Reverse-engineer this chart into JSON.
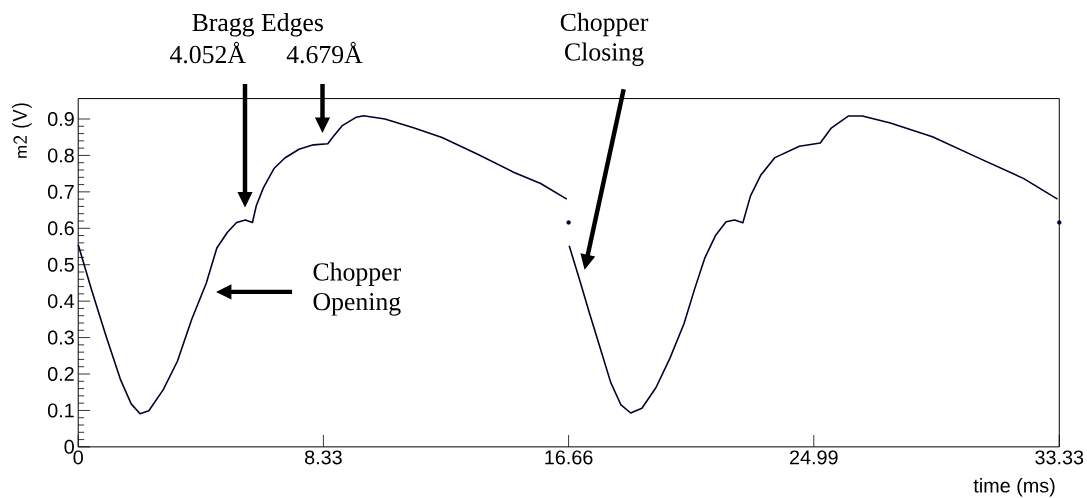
{
  "chart_data": {
    "type": "line",
    "xlabel": "time (ms)",
    "ylabel": "m2 (V)",
    "xlim": [
      0,
      33.33
    ],
    "xticks": [
      0,
      8.33,
      16.66,
      24.99,
      33.33
    ],
    "ylim": [
      0,
      0.956
    ],
    "yticks": [
      0,
      0.1,
      0.2,
      0.3,
      0.4,
      0.5,
      0.6,
      0.7,
      0.8,
      0.9
    ],
    "line_style": "solid",
    "annotations": [
      "Bragg Edges",
      "4.052Å",
      "4.679Å",
      "Chopper Opening",
      "Chopper Closing"
    ],
    "series": [
      {
        "color": "#00002a",
        "x": [
          0,
          0.46,
          0.95,
          1.43,
          1.8,
          2.1,
          2.4,
          2.89,
          3.37,
          3.86,
          4.35,
          4.71,
          5.07,
          5.38,
          5.68,
          5.92,
          6.05,
          6.29,
          6.65,
          7.02,
          7.5,
          7.99,
          8.48,
          8.66,
          8.96,
          9.45,
          9.69,
          10.42,
          11.39,
          12.36,
          13.57,
          14.79,
          15.71,
          16.6,
          16.64,
          16.68,
          17.02,
          17.37,
          17.73,
          18.09,
          18.44,
          18.77,
          19.15,
          19.63,
          20.1,
          20.58,
          20.94,
          21.29,
          21.65,
          22.01,
          22.3,
          22.58,
          22.84,
          23.19,
          23.67,
          24.5,
          25.21,
          25.57,
          26.16,
          26.64,
          27.59,
          29.02,
          30.56,
          32.11,
          33.27
        ],
        "values": [
          0.555,
          0.429,
          0.303,
          0.186,
          0.118,
          0.091,
          0.099,
          0.157,
          0.235,
          0.351,
          0.449,
          0.546,
          0.589,
          0.616,
          0.623,
          0.616,
          0.662,
          0.711,
          0.764,
          0.793,
          0.817,
          0.829,
          0.832,
          0.851,
          0.881,
          0.905,
          0.909,
          0.9,
          0.876,
          0.849,
          0.803,
          0.754,
          0.723,
          0.68,
          null,
          0.552,
          0.462,
          0.367,
          0.272,
          0.177,
          0.115,
          0.093,
          0.106,
          0.163,
          0.243,
          0.338,
          0.433,
          0.519,
          0.58,
          0.618,
          0.623,
          0.615,
          0.689,
          0.746,
          0.794,
          0.825,
          0.834,
          0.874,
          0.908,
          0.908,
          0.889,
          0.851,
          0.794,
          0.737,
          0.68
        ]
      },
      {
        "type": "scatter",
        "color": "#00002a",
        "x": [
          16.66,
          33.33
        ],
        "values": [
          0.616,
          0.616
        ]
      }
    ]
  }
}
